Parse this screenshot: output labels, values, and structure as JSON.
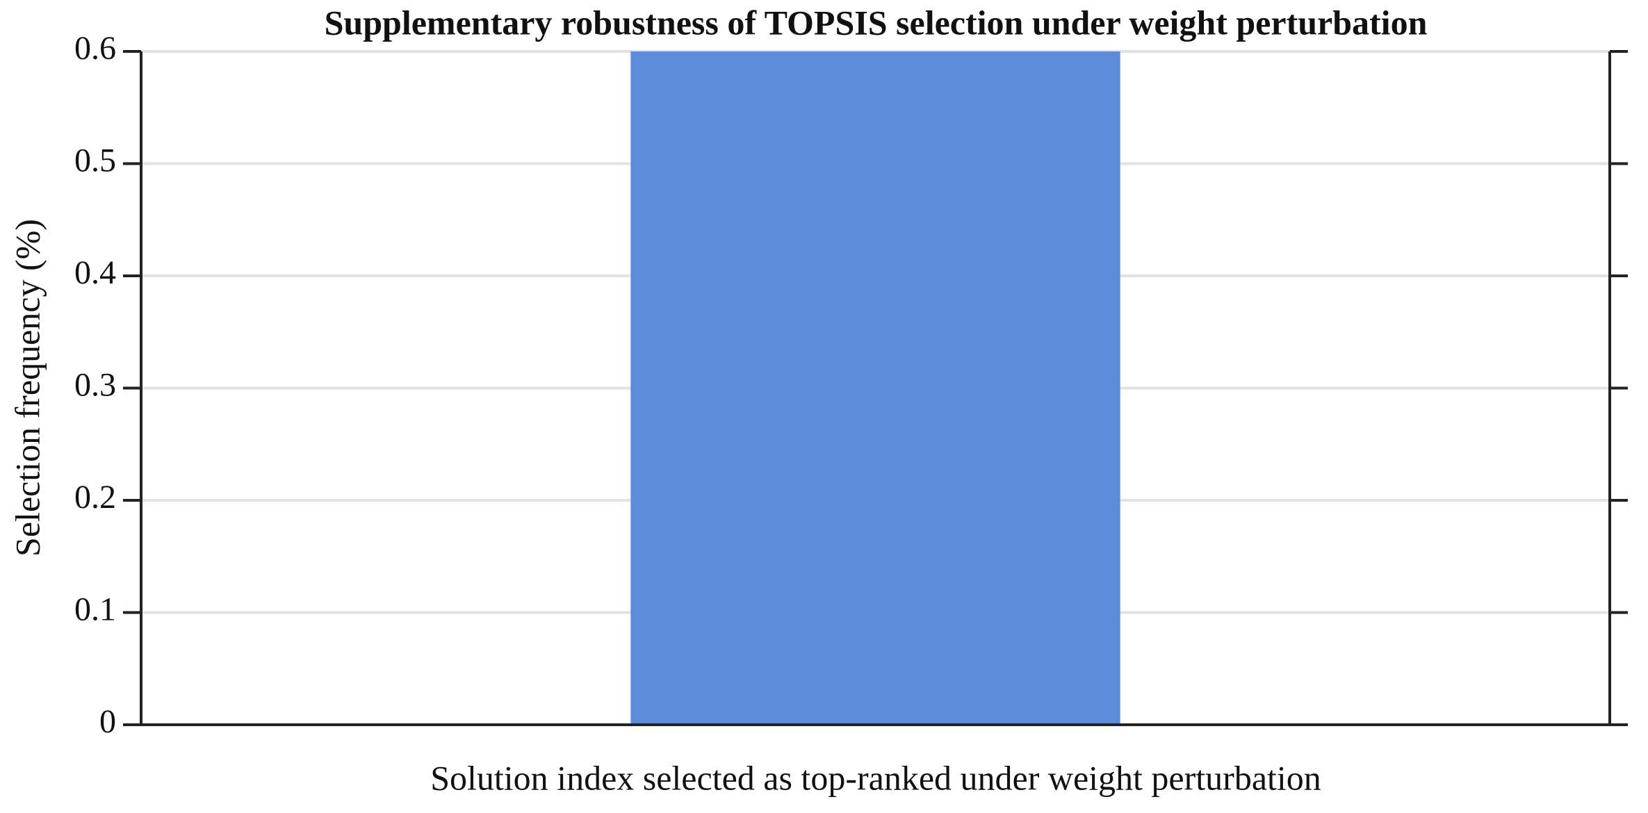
{
  "chart_data": {
    "type": "bar",
    "title": "Supplementary robustness of TOPSIS selection under weight perturbation",
    "xlabel": "Solution index selected as top-ranked under weight perturbation",
    "ylabel": "Selection frequency (%)",
    "categories": [
      null
    ],
    "values": [
      0.6
    ],
    "color": "#5b8bd9",
    "ylim": [
      0,
      0.6
    ],
    "yticks": [
      0,
      0.1,
      0.2,
      0.3,
      0.4,
      0.5,
      0.6
    ],
    "grid": true
  }
}
